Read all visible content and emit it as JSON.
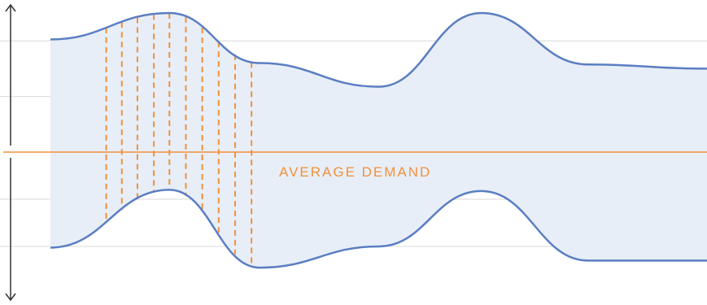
{
  "chart_data": {
    "type": "area",
    "title": "",
    "xlabel": "",
    "ylabel": "",
    "grid": true,
    "ylim": [
      -1,
      1
    ],
    "xlim": [
      0,
      800
    ],
    "series": [
      {
        "role": "upper",
        "x": [
          0,
          145,
          255,
          400,
          525,
          655,
          800
        ],
        "y": [
          0.81,
          1.0,
          0.64,
          0.47,
          1.0,
          0.63,
          0.6
        ]
      },
      {
        "role": "lower",
        "x": [
          0,
          145,
          255,
          400,
          525,
          655,
          800
        ],
        "y": [
          -0.81,
          -0.32,
          -0.98,
          -0.8,
          -0.33,
          -0.92,
          -0.92
        ]
      }
    ],
    "average_line": {
      "y": 0,
      "label": "AVERAGE DEMAND"
    },
    "dashed_lines_x": [
      68,
      87,
      106,
      126,
      145,
      165,
      185,
      205,
      225,
      245
    ],
    "colors": {
      "curve": "#5b7ec2",
      "fill": "#e8eef7",
      "accent": "#f0913a",
      "grid": "#d8d8d8",
      "axis": "#333333"
    }
  }
}
